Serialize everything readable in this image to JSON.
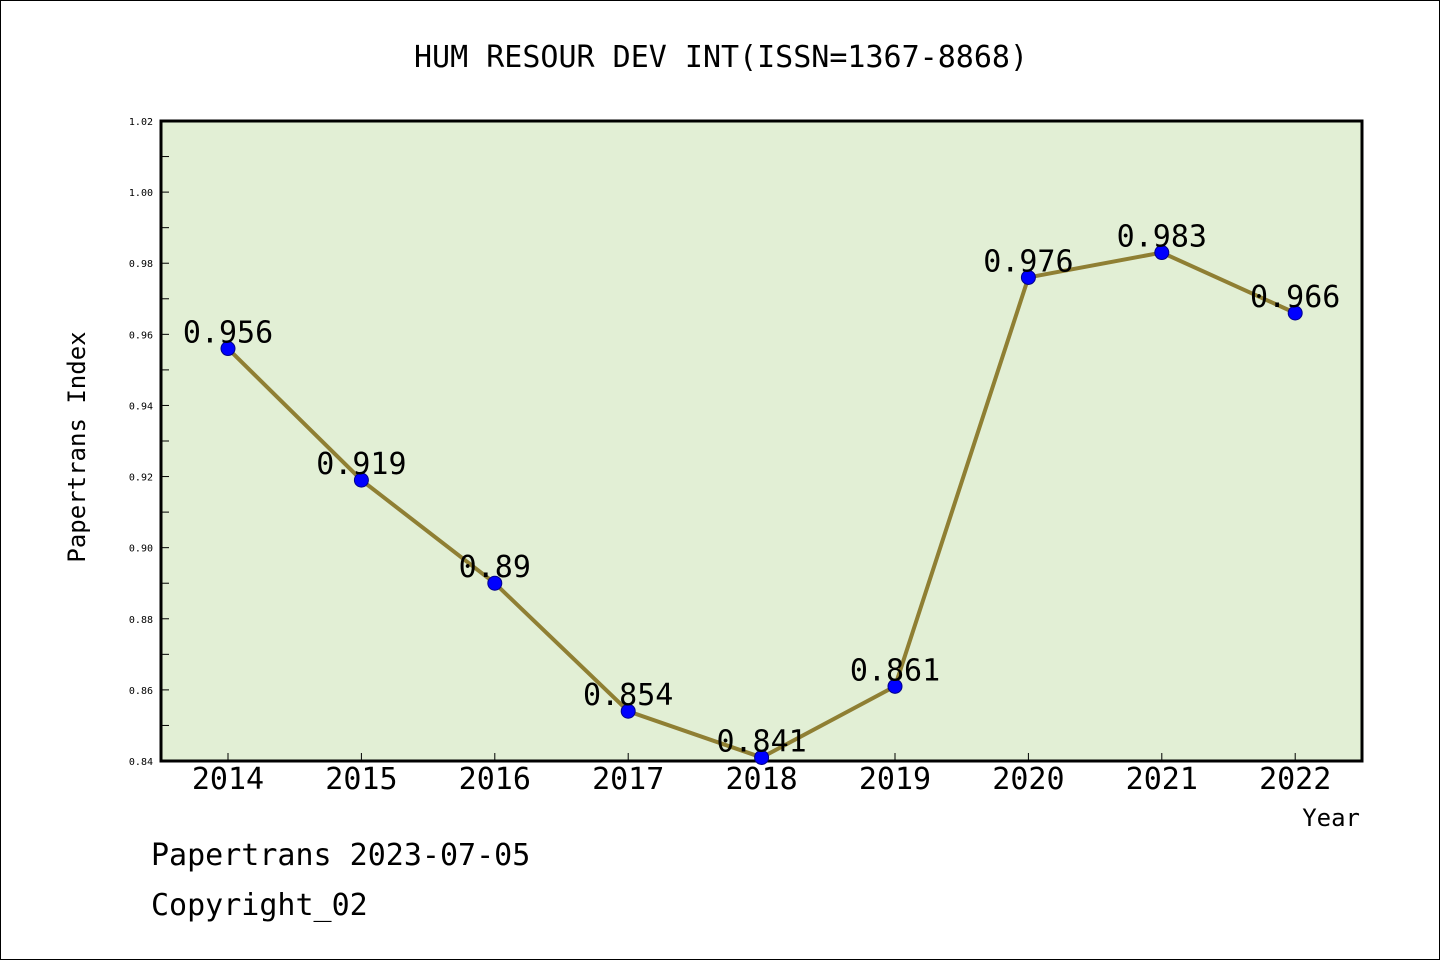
{
  "chart_data": {
    "type": "line",
    "title": "HUM RESOUR DEV INT(ISSN=1367-8868)",
    "xlabel": "Year",
    "ylabel": "Papertrans Index",
    "categories": [
      "2014",
      "2015",
      "2016",
      "2017",
      "2018",
      "2019",
      "2020",
      "2021",
      "2022"
    ],
    "series": [
      {
        "values": [
          0.956,
          0.919,
          0.89,
          0.854,
          0.841,
          0.861,
          0.976,
          0.983,
          0.966
        ],
        "labels": [
          "0.956",
          "0.919",
          "0.89",
          "0.854",
          "0.841",
          "0.861",
          "0.976",
          "0.983",
          "0.966"
        ]
      }
    ],
    "ylim": [
      0.84,
      1.02
    ],
    "yticks": [
      "0.84",
      "0.86",
      "0.88",
      "0.90",
      "0.92",
      "0.94",
      "0.96",
      "0.98",
      "1.00",
      "1.02"
    ],
    "grid": false,
    "colors": {
      "plot_background": "#e2efd5",
      "line": "#8f7f33",
      "marker": "#0000ff"
    }
  },
  "footer": {
    "line1": "Papertrans 2023-07-05",
    "line2": "Copyright_02"
  }
}
